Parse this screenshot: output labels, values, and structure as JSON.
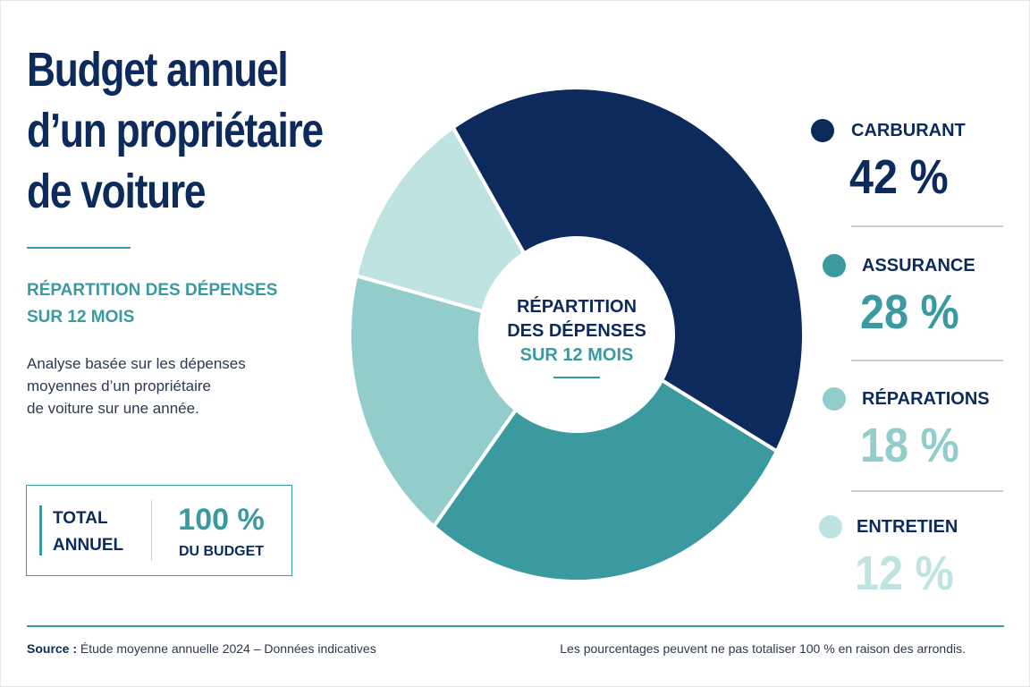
{
  "title_lines": [
    "Budget annuel",
    "d’un propriétaire",
    "de voiture"
  ],
  "subtitle_lines": [
    "RÉPARTITION DES DÉPENSES",
    "SUR 12 MOIS"
  ],
  "description_lines": [
    "Analyse basée sur les dépenses",
    "moyennes d’un propriétaire",
    "de voiture sur une année."
  ],
  "total": {
    "label_lines": [
      "TOTAL",
      "ANNUEL"
    ],
    "value": "100 %",
    "sub": "DU BUDGET"
  },
  "center_label": {
    "line1": "RÉPARTITION",
    "line2": "DES DÉPENSES",
    "line3": "SUR 12 MOIS"
  },
  "legend": [
    {
      "name": "CARBURANT",
      "pct": "42 %"
    },
    {
      "name": "ASSURANCE",
      "pct": "28 %"
    },
    {
      "name": "RÉPARATIONS",
      "pct": "18 %"
    },
    {
      "name": "ENTRETIEN",
      "pct": "12 %"
    }
  ],
  "footer": {
    "source_label": "Source :",
    "source_text": "Étude moyenne annuelle 2024 – Données indicatives",
    "note": "Les pourcentages peuvent ne pas totaliser 100 % en raison des arrondis."
  },
  "colors": {
    "navy": "#0c2a5b",
    "teal": "#3a9aa0",
    "light_teal": "#93cdcb",
    "pale_teal": "#bfe3e1"
  },
  "chart_data": {
    "type": "pie",
    "categories": [
      "CARBURANT",
      "ASSURANCE",
      "RÉPARATIONS",
      "ENTRETIEN"
    ],
    "values": [
      42,
      28,
      18,
      12
    ],
    "colors": [
      "#0c2a5b",
      "#3a9aa0",
      "#93cdcb",
      "#bfe3e1"
    ],
    "donut": true
  }
}
